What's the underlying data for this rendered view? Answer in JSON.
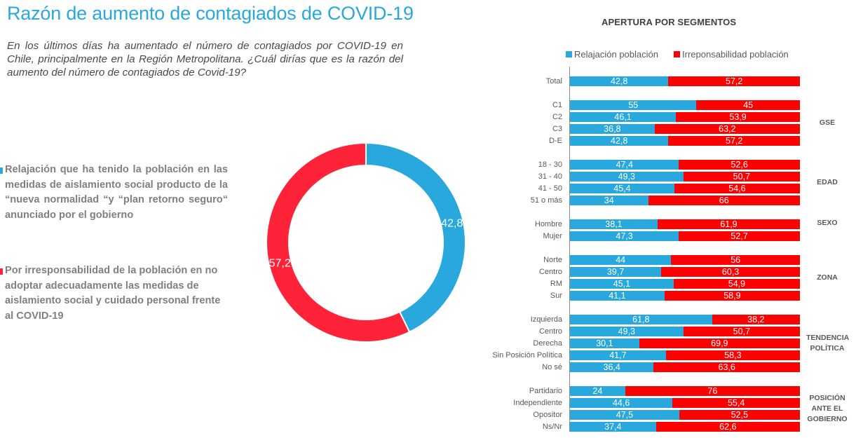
{
  "page": {
    "title": "Razón de aumento de contagiados de COVID-19",
    "question": "En los últimos días ha aumentado el número de contagiados por COVID-19 en Chile, principalmente en la Región Metropolitana. ¿Cuál dirías que es la razón del aumento del número de contagiados de Covid-19?"
  },
  "colors": {
    "relajacion": "#29a8dd",
    "irresponsabilidad_donut": "#ff2339",
    "irresponsabilidad_bar": "#ff0000",
    "title": "#29a8dd"
  },
  "chart_data": [
    {
      "type": "pie",
      "variant": "donut",
      "labels": [
        "Relajación que ha tenido la población en las medidas de aislamiento social producto de la “nueva normalidad “y “plan retorno seguro“ anunciado por el gobierno",
        "Por irresponsabilidad de la población en no adoptar adecuadamente las medidas de aislamiento social y cuidado personal frente al COVID-19"
      ],
      "values": [
        42.8,
        57.2
      ],
      "value_labels": [
        "42,8",
        "57,2"
      ],
      "legend_placement": "left"
    },
    {
      "type": "bar",
      "orientation": "horizontal",
      "stacked": true,
      "title": "APERTURA POR SEGMENTOS",
      "legend_placement": "top",
      "xlim": [
        0,
        100
      ],
      "series": [
        {
          "name": "Relajación población"
        },
        {
          "name": "Irreponsabilidad población"
        }
      ],
      "groups": [
        {
          "name": "",
          "rows": [
            {
              "label": "Total",
              "values": [
                42.8,
                57.2
              ],
              "texts": [
                "42,8",
                "57,2"
              ]
            }
          ]
        },
        {
          "name": "GSE",
          "rows": [
            {
              "label": "C1",
              "values": [
                55,
                45
              ],
              "texts": [
                "55",
                "45"
              ]
            },
            {
              "label": "C2",
              "values": [
                46.1,
                53.9
              ],
              "texts": [
                "46,1",
                "53,9"
              ]
            },
            {
              "label": "C3",
              "values": [
                36.8,
                63.2
              ],
              "texts": [
                "36,8",
                "63,2"
              ]
            },
            {
              "label": "D-E",
              "values": [
                42.8,
                57.2
              ],
              "texts": [
                "42,8",
                "57,2"
              ]
            }
          ]
        },
        {
          "name": "EDAD",
          "rows": [
            {
              "label": "18 - 30",
              "values": [
                47.4,
                52.6
              ],
              "texts": [
                "47,4",
                "52,6"
              ]
            },
            {
              "label": "31 - 40",
              "values": [
                49.3,
                50.7
              ],
              "texts": [
                "49,3",
                "50,7"
              ]
            },
            {
              "label": "41 - 50",
              "values": [
                45.4,
                54.6
              ],
              "texts": [
                "45,4",
                "54,6"
              ]
            },
            {
              "label": "51 o más",
              "values": [
                34,
                66
              ],
              "texts": [
                "34",
                "66"
              ]
            }
          ]
        },
        {
          "name": "SEXO",
          "rows": [
            {
              "label": "Hombre",
              "values": [
                38.1,
                61.9
              ],
              "texts": [
                "38,1",
                "61,9"
              ]
            },
            {
              "label": "Mujer",
              "values": [
                47.3,
                52.7
              ],
              "texts": [
                "47,3",
                "52,7"
              ]
            }
          ]
        },
        {
          "name": "ZONA",
          "rows": [
            {
              "label": "Norte",
              "values": [
                44,
                56
              ],
              "texts": [
                "44",
                "56"
              ]
            },
            {
              "label": "Centro",
              "values": [
                39.7,
                60.3
              ],
              "texts": [
                "39,7",
                "60,3"
              ]
            },
            {
              "label": "RM",
              "values": [
                45.1,
                54.9
              ],
              "texts": [
                "45,1",
                "54,9"
              ]
            },
            {
              "label": "Sur",
              "values": [
                41.1,
                58.9
              ],
              "texts": [
                "41,1",
                "58,9"
              ]
            }
          ]
        },
        {
          "name": "TENDENCIA\nPOLÍTICA",
          "rows": [
            {
              "label": "Izquierda",
              "values": [
                61.8,
                38.2
              ],
              "texts": [
                "61,8",
                "38,2"
              ]
            },
            {
              "label": "Centro",
              "values": [
                49.3,
                50.7
              ],
              "texts": [
                "49,3",
                "50,7"
              ]
            },
            {
              "label": "Derecha",
              "values": [
                30.1,
                69.9
              ],
              "texts": [
                "30,1",
                "69,9"
              ]
            },
            {
              "label": "Sin Posición Política",
              "values": [
                41.7,
                58.3
              ],
              "texts": [
                "41,7",
                "58,3"
              ]
            },
            {
              "label": "No sé",
              "values": [
                36.4,
                63.6
              ],
              "texts": [
                "36,4",
                "63,6"
              ]
            }
          ]
        },
        {
          "name": "POSICIÓN\nANTE EL\nGOBIERNO",
          "rows": [
            {
              "label": "Partidario",
              "values": [
                24,
                76
              ],
              "texts": [
                "24",
                "76"
              ]
            },
            {
              "label": "Independiente",
              "values": [
                44.6,
                55.4
              ],
              "texts": [
                "44,6",
                "55,4"
              ]
            },
            {
              "label": "Opositor",
              "values": [
                47.5,
                52.5
              ],
              "texts": [
                "47,5",
                "52,5"
              ]
            },
            {
              "label": "Ns/Nr",
              "values": [
                37.4,
                62.6
              ],
              "texts": [
                "37,4",
                "62,6"
              ]
            }
          ]
        }
      ]
    }
  ]
}
